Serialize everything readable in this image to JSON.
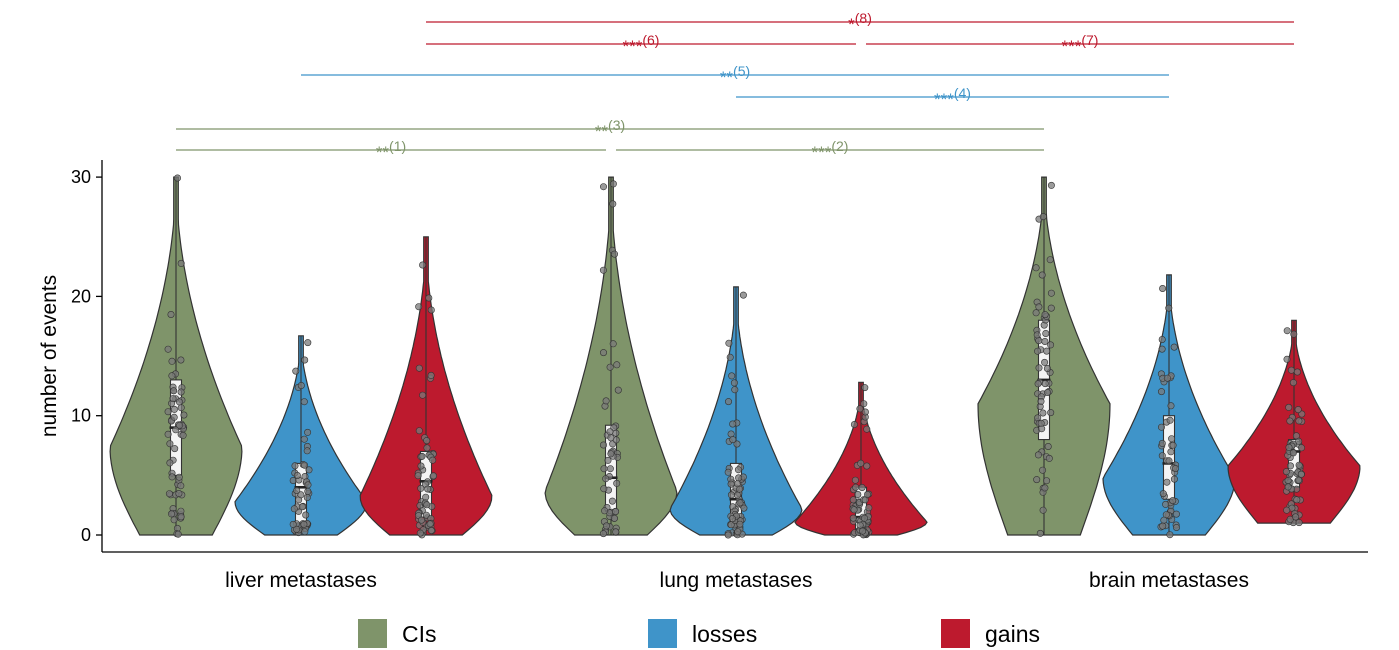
{
  "chart_data": {
    "type": "violin",
    "title": "",
    "xlabel": "",
    "ylabel": "number of events",
    "ylim": [
      0,
      31
    ],
    "yticks": [
      0,
      10,
      20,
      30
    ],
    "categories": [
      "liver metastases",
      "lung metastases",
      "brain metastases"
    ],
    "series": [
      {
        "name": "CIs",
        "color": "#7F946A",
        "groups": [
          {
            "category": "liver metastases",
            "min": 0,
            "q1": 5,
            "median": 9,
            "q3": 13,
            "max": 30
          },
          {
            "category": "lung metastases",
            "min": 0,
            "q1": 2,
            "median": 4.8,
            "q3": 9.2,
            "max": 30
          },
          {
            "category": "brain metastases",
            "min": 0,
            "q1": 8,
            "median": 13,
            "q3": 18,
            "max": 30
          }
        ]
      },
      {
        "name": "losses",
        "color": "#3F94C9",
        "groups": [
          {
            "category": "liver metastases",
            "min": 0,
            "q1": 1,
            "median": 4,
            "q3": 6,
            "max": 16.7
          },
          {
            "category": "lung metastases",
            "min": 0,
            "q1": 1,
            "median": 3,
            "q3": 6,
            "max": 20.8
          },
          {
            "category": "brain metastases",
            "min": 0,
            "q1": 3,
            "median": 6,
            "q3": 10,
            "max": 21.8
          }
        ]
      },
      {
        "name": "gains",
        "color": "#BD1A2E",
        "groups": [
          {
            "category": "liver metastases",
            "min": 0,
            "q1": 1.5,
            "median": 4.5,
            "q3": 7,
            "max": 25
          },
          {
            "category": "lung metastases",
            "min": 0,
            "q1": 0.5,
            "median": 1.5,
            "q3": 4,
            "max": 12.8
          },
          {
            "category": "brain metastases",
            "min": 1,
            "q1": 4,
            "median": 7,
            "q3": 8,
            "max": 18
          }
        ]
      }
    ],
    "significance": [
      {
        "label": "**",
        "id": "(1)",
        "series": "CIs",
        "from": [
          "liver metastases",
          "CIs"
        ],
        "to": [
          "lung metastases",
          "CIs"
        ]
      },
      {
        "label": "***",
        "id": "(2)",
        "series": "CIs",
        "from": [
          "lung metastases",
          "CIs"
        ],
        "to": [
          "brain metastases",
          "CIs"
        ]
      },
      {
        "label": "**",
        "id": "(3)",
        "series": "CIs",
        "from": [
          "liver metastases",
          "CIs"
        ],
        "to": [
          "brain metastases",
          "CIs"
        ]
      },
      {
        "label": "***",
        "id": "(4)",
        "series": "losses",
        "from": [
          "lung metastases",
          "losses"
        ],
        "to": [
          "brain metastases",
          "losses"
        ]
      },
      {
        "label": "**",
        "id": "(5)",
        "series": "losses",
        "from": [
          "liver metastases",
          "losses"
        ],
        "to": [
          "brain metastases",
          "losses"
        ]
      },
      {
        "label": "***",
        "id": "(6)",
        "series": "gains",
        "from": [
          "liver metastases",
          "gains"
        ],
        "to": [
          "lung metastases",
          "gains"
        ]
      },
      {
        "label": "***",
        "id": "(7)",
        "series": "gains",
        "from": [
          "lung metastases",
          "gains"
        ],
        "to": [
          "brain metastases",
          "gains"
        ]
      },
      {
        "label": "*",
        "id": "(8)",
        "series": "gains",
        "from": [
          "liver metastases",
          "gains"
        ],
        "to": [
          "brain metastases",
          "gains"
        ]
      }
    ],
    "legend": {
      "position": "bottom",
      "items": [
        "CIs",
        "losses",
        "gains"
      ]
    },
    "grid": false
  }
}
